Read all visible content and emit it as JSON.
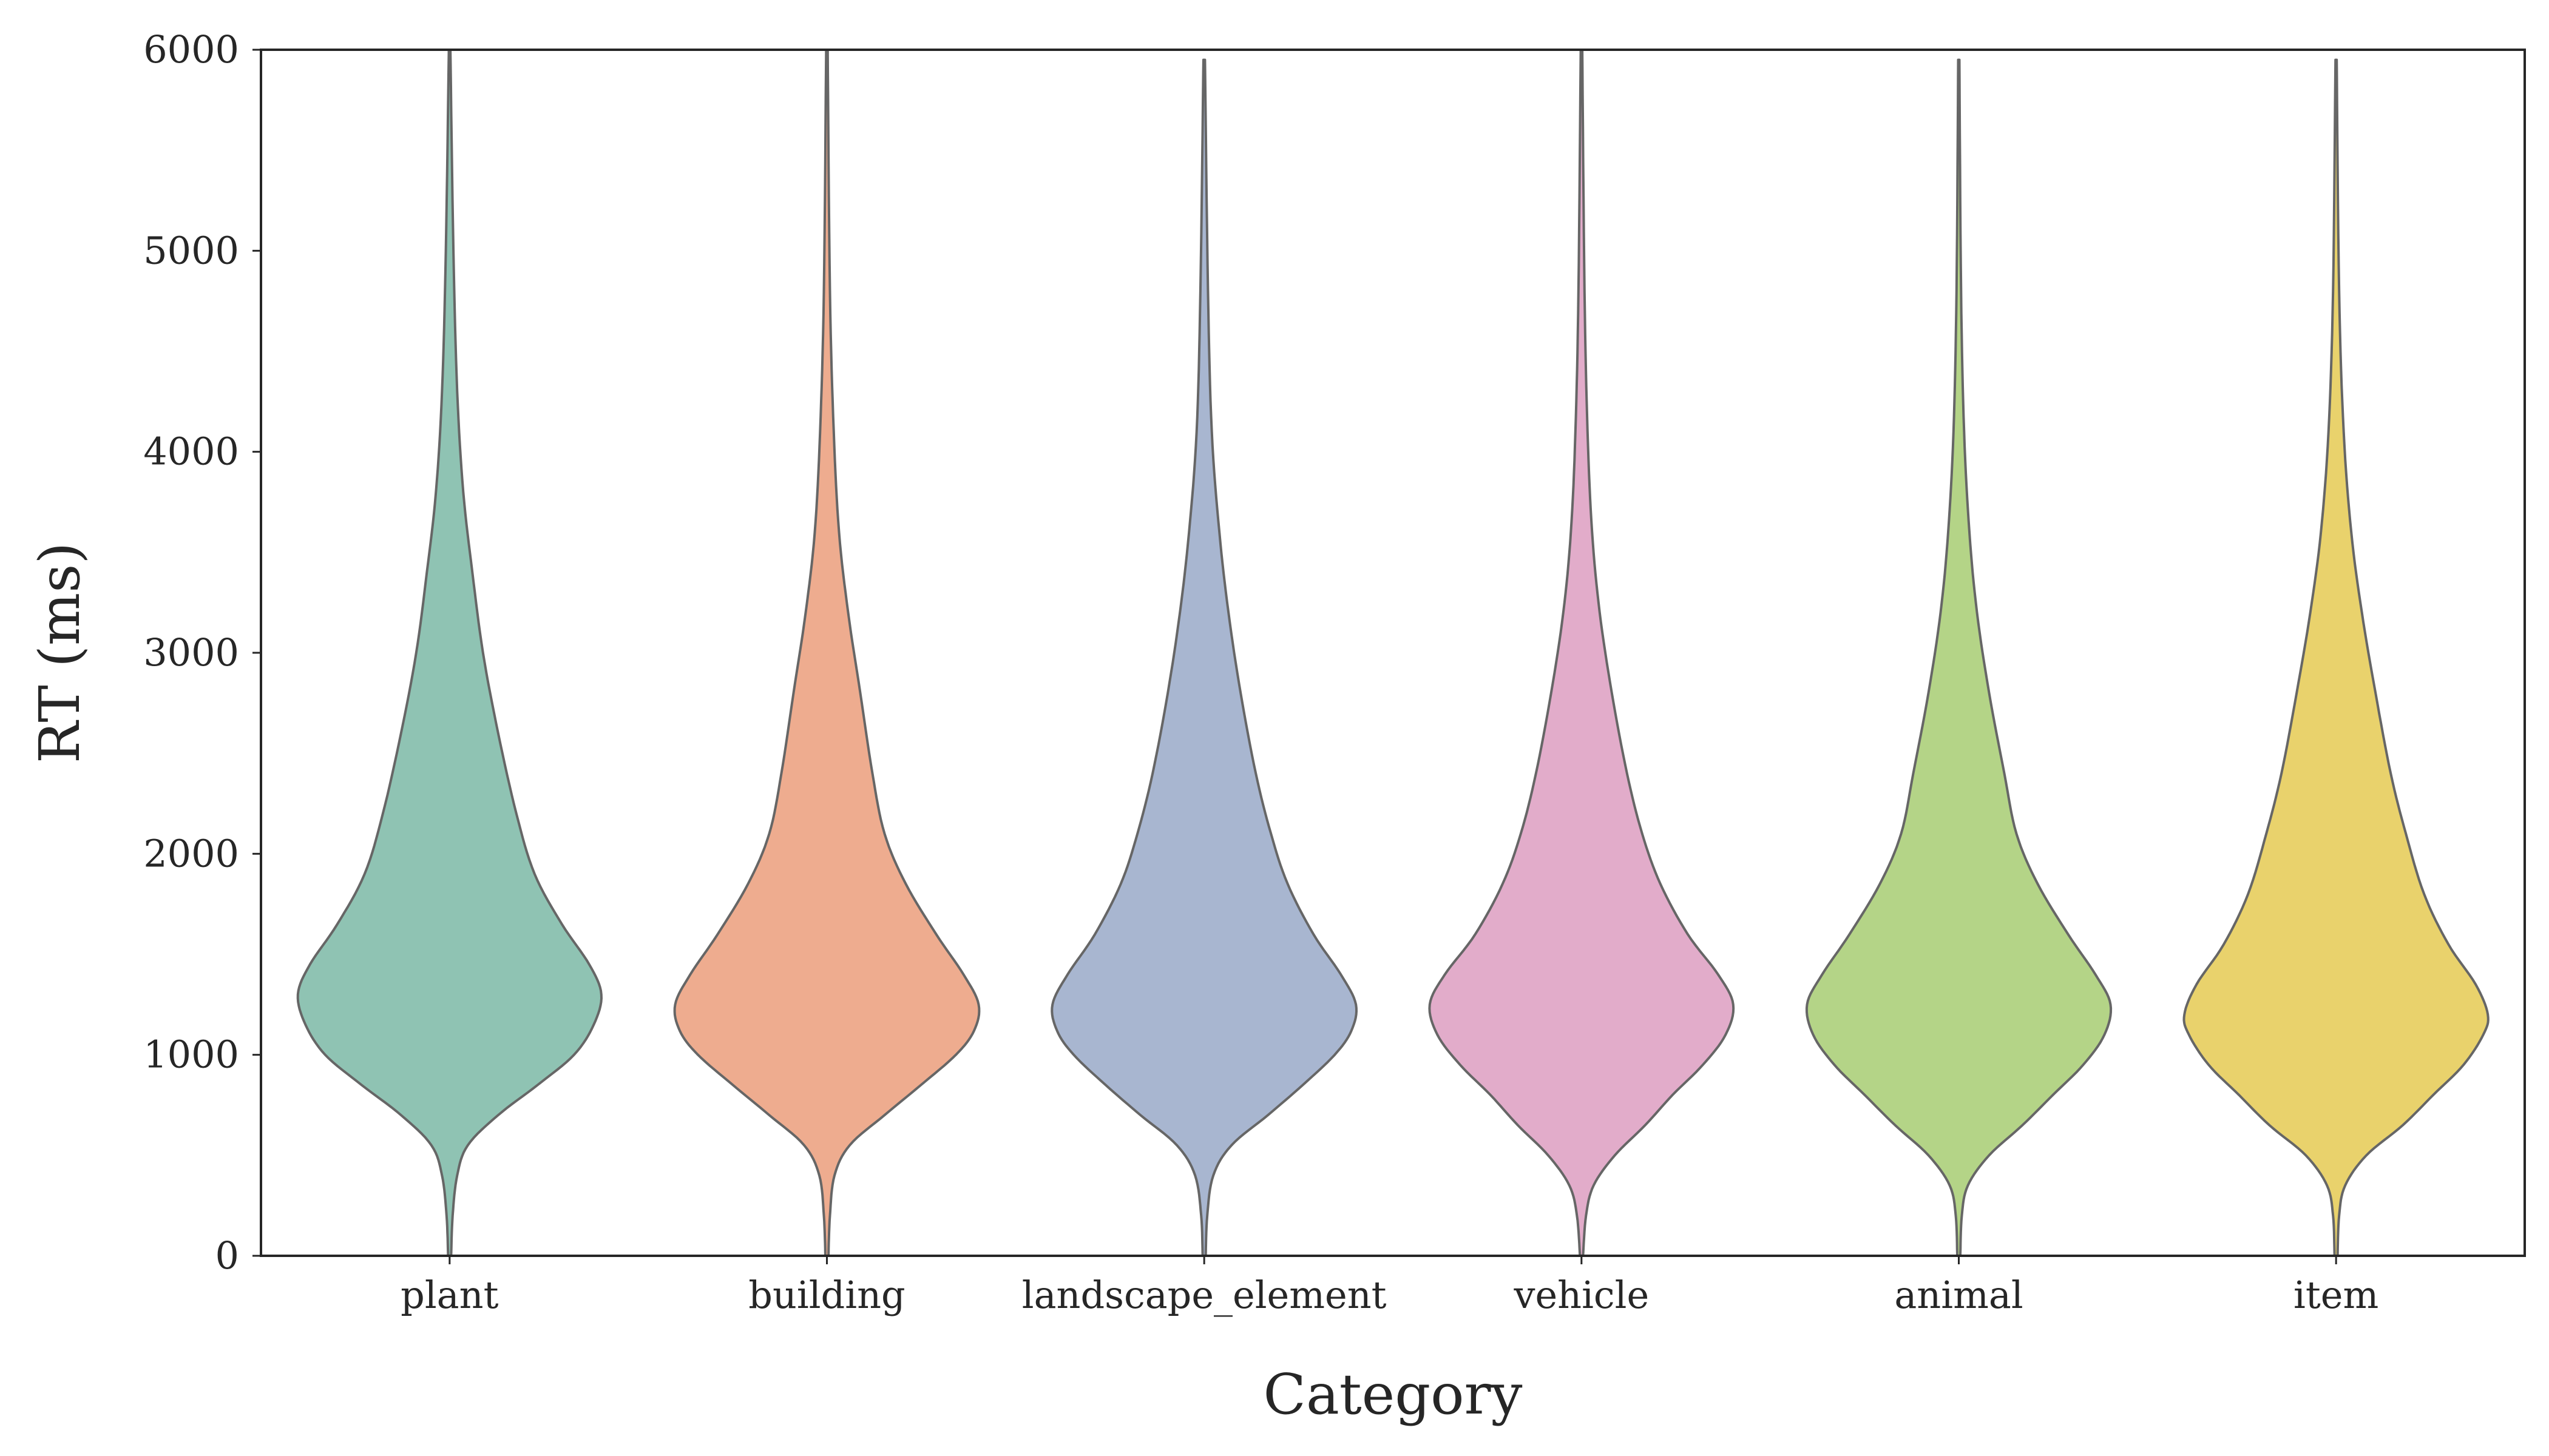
{
  "chart_data": {
    "type": "violin",
    "xlabel": "Category",
    "ylabel": "RT (ms)",
    "ylim": [
      0,
      6000
    ],
    "yticks": [
      0,
      1000,
      2000,
      3000,
      4000,
      5000,
      6000
    ],
    "grid": false,
    "legend": "none",
    "categories": [
      "plant",
      "building",
      "landscape_element",
      "vehicle",
      "animal",
      "item"
    ],
    "series": [
      {
        "category": "plant",
        "color": "#8fc3b3",
        "y_min": 0,
        "y_max": 6000,
        "density_profile": [
          [
            0,
            0.01
          ],
          [
            200,
            0.02
          ],
          [
            400,
            0.05
          ],
          [
            550,
            0.12
          ],
          [
            700,
            0.32
          ],
          [
            850,
            0.58
          ],
          [
            1000,
            0.82
          ],
          [
            1150,
            0.95
          ],
          [
            1300,
            1.0
          ],
          [
            1450,
            0.92
          ],
          [
            1650,
            0.74
          ],
          [
            1900,
            0.56
          ],
          [
            2200,
            0.44
          ],
          [
            2600,
            0.32
          ],
          [
            3000,
            0.22
          ],
          [
            3400,
            0.15
          ],
          [
            3800,
            0.09
          ],
          [
            4300,
            0.05
          ],
          [
            5000,
            0.025
          ],
          [
            6000,
            0.005
          ]
        ]
      },
      {
        "category": "building",
        "color": "#eeac8f",
        "y_min": 0,
        "y_max": 6000,
        "density_profile": [
          [
            0,
            0.01
          ],
          [
            200,
            0.02
          ],
          [
            400,
            0.05
          ],
          [
            550,
            0.15
          ],
          [
            700,
            0.38
          ],
          [
            850,
            0.62
          ],
          [
            1000,
            0.85
          ],
          [
            1120,
            0.97
          ],
          [
            1250,
            1.0
          ],
          [
            1400,
            0.9
          ],
          [
            1600,
            0.72
          ],
          [
            1850,
            0.52
          ],
          [
            2100,
            0.38
          ],
          [
            2400,
            0.3
          ],
          [
            2800,
            0.22
          ],
          [
            3200,
            0.14
          ],
          [
            3600,
            0.08
          ],
          [
            4100,
            0.045
          ],
          [
            4800,
            0.02
          ],
          [
            6000,
            0.005
          ]
        ]
      },
      {
        "category": "landscape_element",
        "color": "#a8b6d0",
        "y_min": 0,
        "y_max": 5950,
        "density_profile": [
          [
            0,
            0.01
          ],
          [
            200,
            0.02
          ],
          [
            400,
            0.06
          ],
          [
            550,
            0.18
          ],
          [
            700,
            0.42
          ],
          [
            850,
            0.65
          ],
          [
            1000,
            0.86
          ],
          [
            1120,
            0.97
          ],
          [
            1250,
            1.0
          ],
          [
            1400,
            0.9
          ],
          [
            1600,
            0.72
          ],
          [
            1850,
            0.55
          ],
          [
            2100,
            0.44
          ],
          [
            2400,
            0.34
          ],
          [
            2800,
            0.24
          ],
          [
            3200,
            0.16
          ],
          [
            3600,
            0.1
          ],
          [
            4100,
            0.05
          ],
          [
            4800,
            0.025
          ],
          [
            5950,
            0.005
          ]
        ]
      },
      {
        "category": "vehicle",
        "color": "#e2acca",
        "y_min": 0,
        "y_max": 6000,
        "density_profile": [
          [
            0,
            0.01
          ],
          [
            200,
            0.03
          ],
          [
            350,
            0.08
          ],
          [
            500,
            0.22
          ],
          [
            650,
            0.42
          ],
          [
            800,
            0.6
          ],
          [
            950,
            0.8
          ],
          [
            1100,
            0.95
          ],
          [
            1250,
            1.0
          ],
          [
            1400,
            0.9
          ],
          [
            1600,
            0.7
          ],
          [
            1850,
            0.52
          ],
          [
            2100,
            0.4
          ],
          [
            2400,
            0.3
          ],
          [
            2800,
            0.2
          ],
          [
            3200,
            0.12
          ],
          [
            3600,
            0.07
          ],
          [
            4100,
            0.04
          ],
          [
            4800,
            0.02
          ],
          [
            6000,
            0.005
          ]
        ]
      },
      {
        "category": "animal",
        "color": "#b4d487",
        "y_min": 0,
        "y_max": 5950,
        "density_profile": [
          [
            0,
            0.01
          ],
          [
            200,
            0.02
          ],
          [
            350,
            0.06
          ],
          [
            500,
            0.2
          ],
          [
            650,
            0.42
          ],
          [
            800,
            0.62
          ],
          [
            950,
            0.82
          ],
          [
            1100,
            0.96
          ],
          [
            1250,
            1.0
          ],
          [
            1400,
            0.9
          ],
          [
            1600,
            0.72
          ],
          [
            1850,
            0.52
          ],
          [
            2100,
            0.38
          ],
          [
            2400,
            0.3
          ],
          [
            2800,
            0.2
          ],
          [
            3200,
            0.12
          ],
          [
            3600,
            0.07
          ],
          [
            4100,
            0.035
          ],
          [
            4800,
            0.015
          ],
          [
            5950,
            0.004
          ]
        ]
      },
      {
        "category": "item",
        "color": "#e9d26c",
        "y_min": 0,
        "y_max": 5950,
        "density_profile": [
          [
            0,
            0.01
          ],
          [
            200,
            0.02
          ],
          [
            350,
            0.06
          ],
          [
            500,
            0.2
          ],
          [
            650,
            0.44
          ],
          [
            800,
            0.64
          ],
          [
            950,
            0.84
          ],
          [
            1100,
            0.97
          ],
          [
            1200,
            1.0
          ],
          [
            1350,
            0.92
          ],
          [
            1550,
            0.74
          ],
          [
            1800,
            0.58
          ],
          [
            2100,
            0.46
          ],
          [
            2400,
            0.36
          ],
          [
            2800,
            0.26
          ],
          [
            3200,
            0.17
          ],
          [
            3600,
            0.1
          ],
          [
            4100,
            0.05
          ],
          [
            4800,
            0.02
          ],
          [
            5950,
            0.004
          ]
        ]
      }
    ]
  }
}
